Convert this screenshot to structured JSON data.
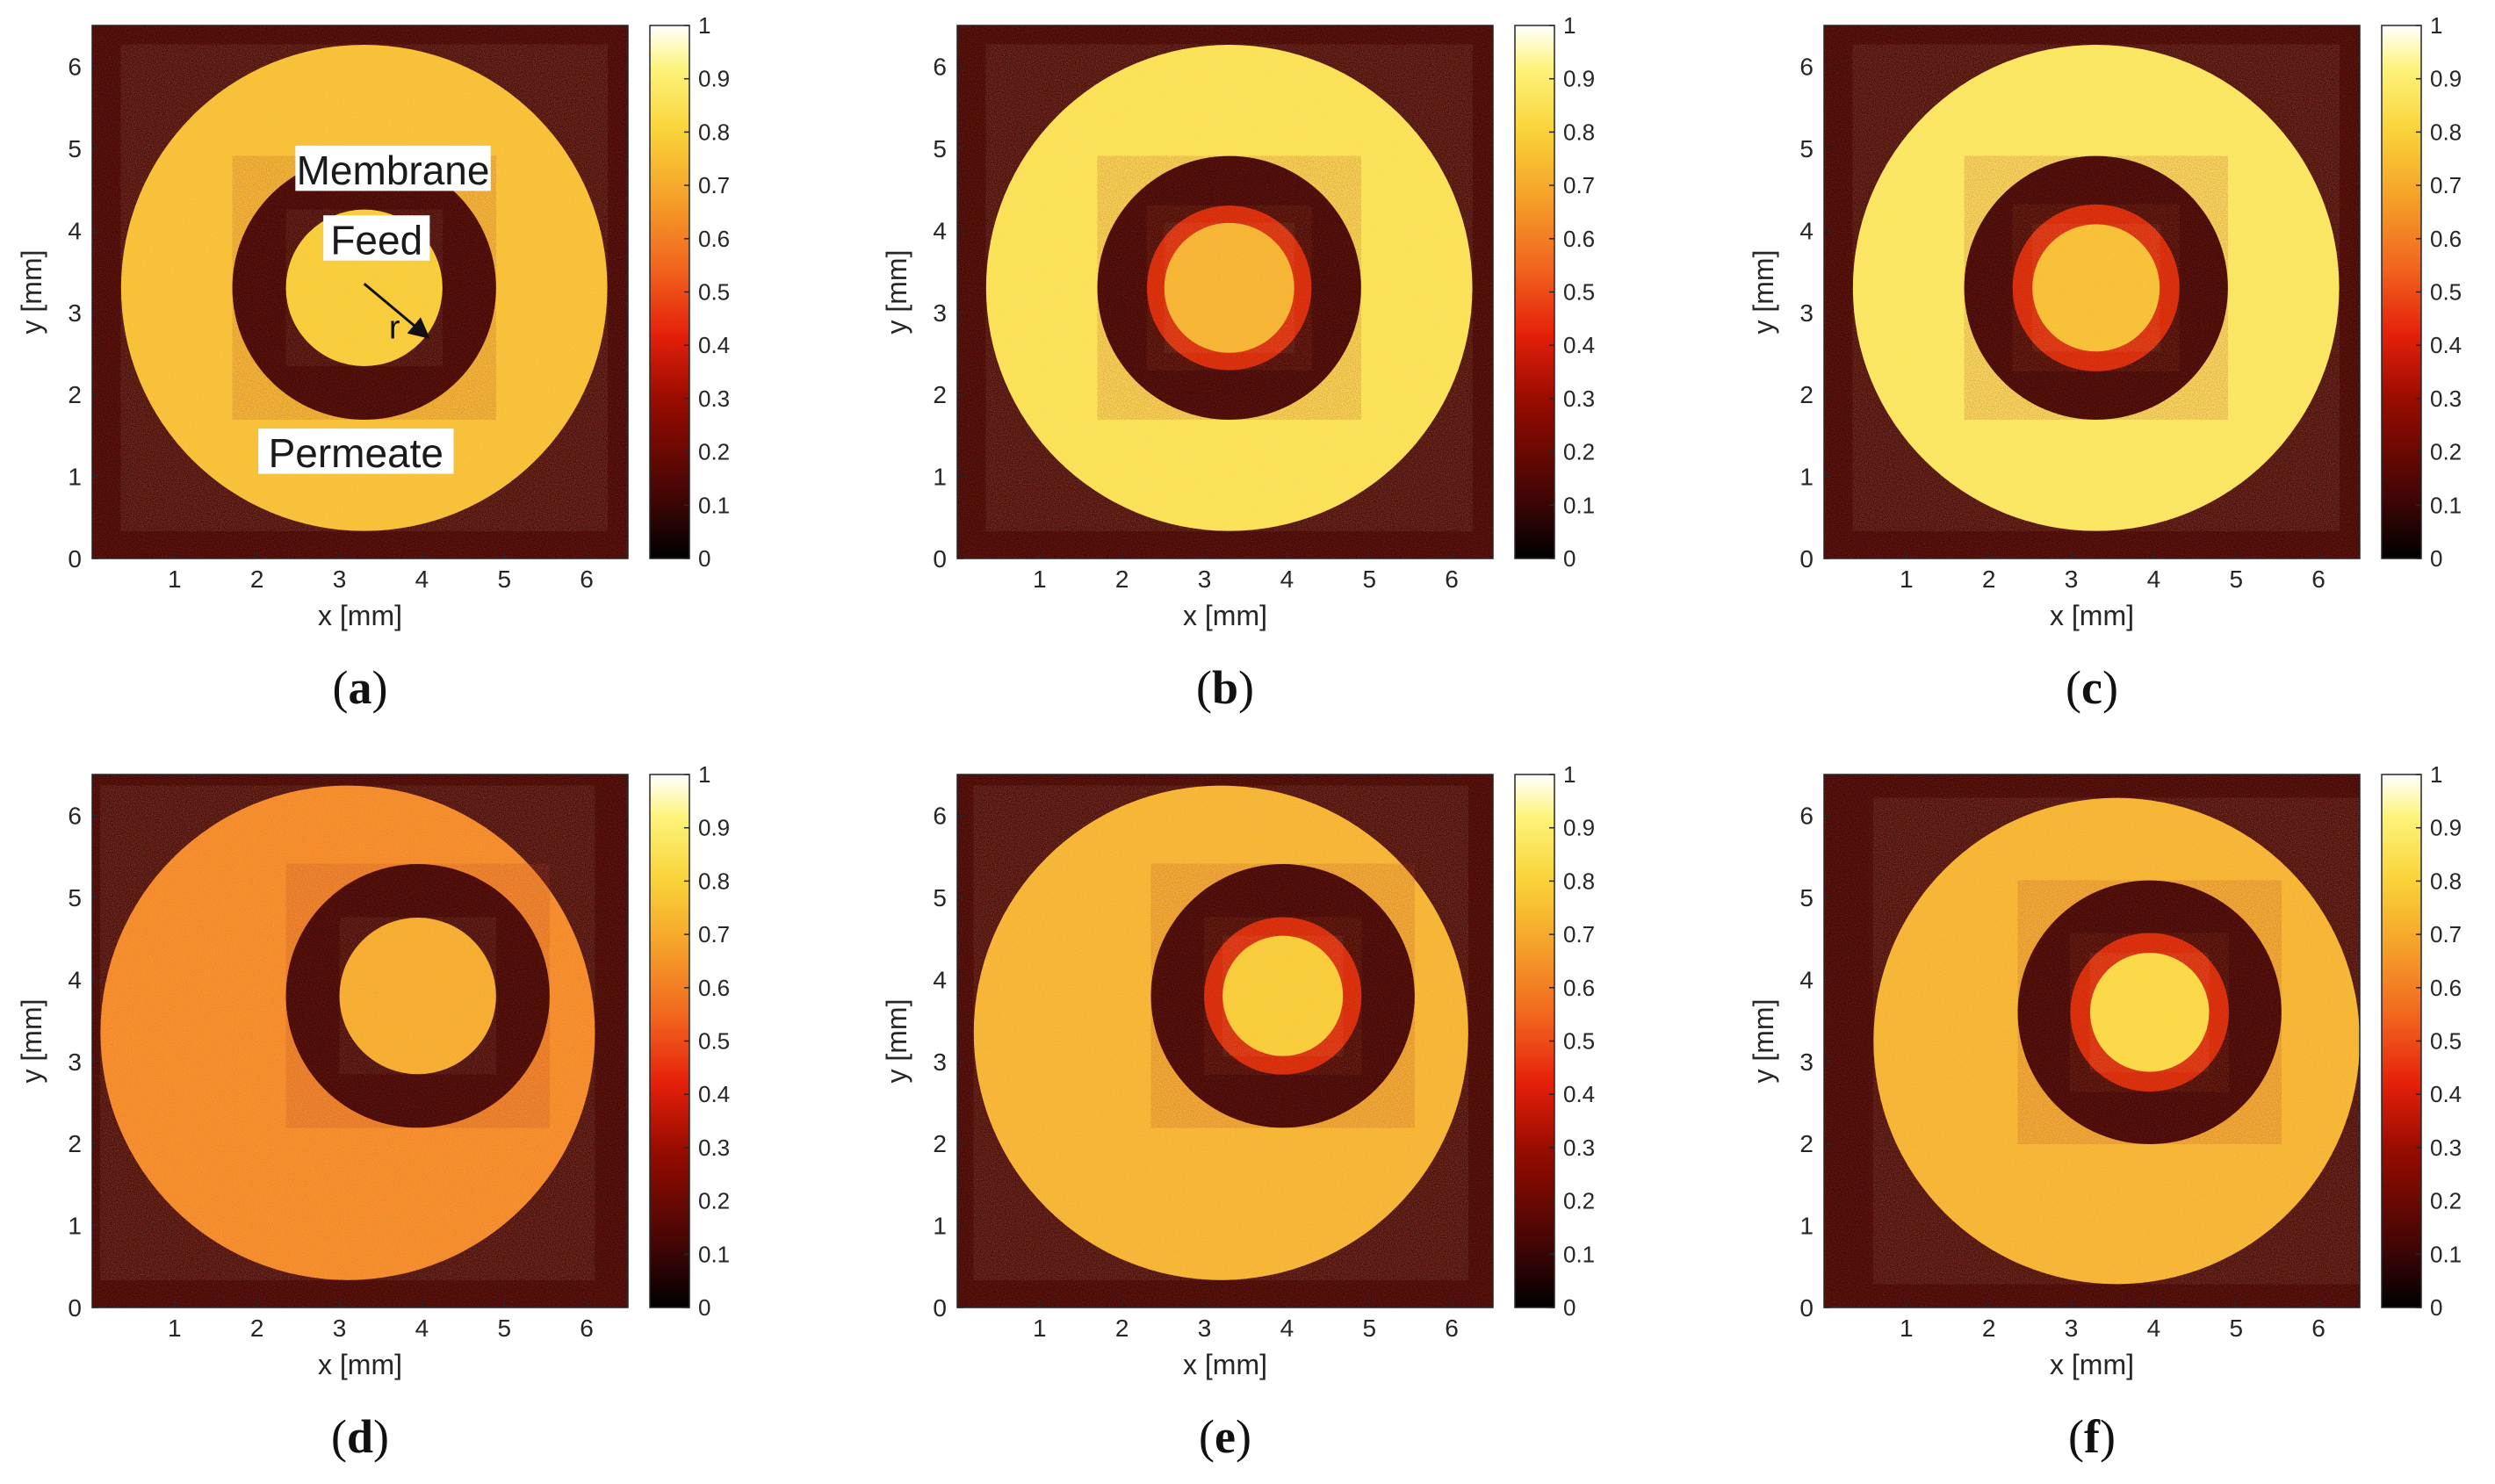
{
  "figure": {
    "colormap": "hot",
    "colors": {
      "dark_bg": "#3a0505",
      "ring_gold": "#f4b73a",
      "ring_yellow": "#f7d040",
      "ring_orange": "#ee9a36",
      "halo_red": "#d62a0a",
      "inner_gold": "#f1b03c",
      "inner_bright": "#f6d055",
      "label_box": "#ffffff",
      "text": "#1a1a1a"
    },
    "colorbar_ticks": [
      "0",
      "0.1",
      "0.2",
      "0.3",
      "0.4",
      "0.5",
      "0.6",
      "0.7",
      "0.8",
      "0.9",
      "1"
    ],
    "x_ticks": [
      "1",
      "2",
      "3",
      "4",
      "5",
      "6"
    ],
    "y_ticks": [
      "0",
      "1",
      "2",
      "3",
      "4",
      "5",
      "6"
    ]
  },
  "chart_data": [
    {
      "type": "heatmap",
      "panel": "(a)",
      "panel_letter": "a",
      "xlabel": "x [mm]",
      "ylabel": "y [mm]",
      "xlim": [
        0,
        6.5
      ],
      "ylim": [
        0,
        6.5
      ],
      "clim": [
        0,
        1
      ],
      "outer_circle": {
        "cx": 3.3,
        "cy": 3.3,
        "r": 2.95,
        "intensity": 0.75
      },
      "membrane_circle": {
        "cx": 3.3,
        "cy": 3.3,
        "r": 1.6,
        "intensity": 0.05
      },
      "feed_circle": {
        "cx": 3.3,
        "cy": 3.3,
        "r": 0.95,
        "intensity": 0.78
      },
      "halo_width": 0,
      "annotations": [
        "Membrane",
        "Feed",
        "Permeate",
        "r"
      ]
    },
    {
      "type": "heatmap",
      "panel": "(b)",
      "panel_letter": "b",
      "xlabel": "x [mm]",
      "ylabel": "y [mm]",
      "xlim": [
        0,
        6.5
      ],
      "ylim": [
        0,
        6.5
      ],
      "clim": [
        0,
        1
      ],
      "outer_circle": {
        "cx": 3.3,
        "cy": 3.3,
        "r": 2.95,
        "intensity": 0.85
      },
      "membrane_circle": {
        "cx": 3.3,
        "cy": 3.3,
        "r": 1.6,
        "intensity": 0.05
      },
      "feed_circle": {
        "cx": 3.3,
        "cy": 3.3,
        "r": 0.9,
        "intensity": 0.72
      },
      "halo_width": 0.28
    },
    {
      "type": "heatmap",
      "panel": "(c)",
      "panel_letter": "c",
      "xlabel": "x [mm]",
      "ylabel": "y [mm]",
      "xlim": [
        0,
        6.5
      ],
      "ylim": [
        0,
        6.5
      ],
      "clim": [
        0,
        1
      ],
      "outer_circle": {
        "cx": 3.3,
        "cy": 3.3,
        "r": 2.95,
        "intensity": 0.87
      },
      "membrane_circle": {
        "cx": 3.3,
        "cy": 3.3,
        "r": 1.6,
        "intensity": 0.05
      },
      "feed_circle": {
        "cx": 3.3,
        "cy": 3.3,
        "r": 0.9,
        "intensity": 0.75
      },
      "halo_width": 0.32
    },
    {
      "type": "heatmap",
      "panel": "(d)",
      "panel_letter": "d",
      "xlabel": "x [mm]",
      "ylabel": "y [mm]",
      "xlim": [
        0,
        6.5
      ],
      "ylim": [
        0,
        6.5
      ],
      "clim": [
        0,
        1
      ],
      "outer_circle": {
        "cx": 3.1,
        "cy": 3.35,
        "r": 3.0,
        "intensity": 0.62
      },
      "membrane_circle": {
        "cx": 3.95,
        "cy": 3.8,
        "r": 1.6,
        "intensity": 0.05
      },
      "feed_circle": {
        "cx": 3.95,
        "cy": 3.8,
        "r": 0.95,
        "intensity": 0.7
      },
      "halo_width": 0
    },
    {
      "type": "heatmap",
      "panel": "(e)",
      "panel_letter": "e",
      "xlabel": "x [mm]",
      "ylabel": "y [mm]",
      "xlim": [
        0,
        6.5
      ],
      "ylim": [
        0,
        6.5
      ],
      "clim": [
        0,
        1
      ],
      "outer_circle": {
        "cx": 3.2,
        "cy": 3.35,
        "r": 3.0,
        "intensity": 0.72
      },
      "membrane_circle": {
        "cx": 3.95,
        "cy": 3.8,
        "r": 1.6,
        "intensity": 0.05
      },
      "feed_circle": {
        "cx": 3.95,
        "cy": 3.8,
        "r": 0.85,
        "intensity": 0.78
      },
      "halo_width": 0.3
    },
    {
      "type": "heatmap",
      "panel": "(f)",
      "panel_letter": "f",
      "xlabel": "x [mm]",
      "ylabel": "y [mm]",
      "xlim": [
        0,
        6.5
      ],
      "ylim": [
        0,
        6.5
      ],
      "clim": [
        0,
        1
      ],
      "outer_circle": {
        "cx": 3.55,
        "cy": 3.25,
        "r": 2.95,
        "intensity": 0.72
      },
      "membrane_circle": {
        "cx": 3.95,
        "cy": 3.6,
        "r": 1.6,
        "intensity": 0.05
      },
      "feed_circle": {
        "cx": 3.95,
        "cy": 3.6,
        "r": 0.85,
        "intensity": 0.82
      },
      "halo_width": 0.32
    }
  ]
}
